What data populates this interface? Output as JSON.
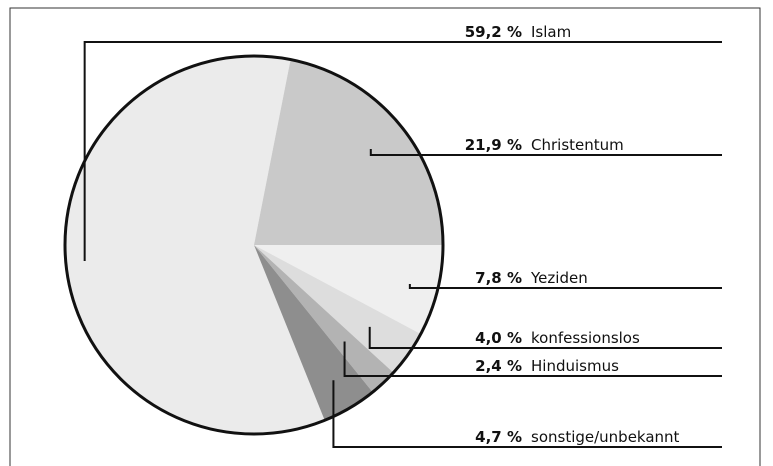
{
  "chart_data": {
    "type": "pie",
    "categories": [
      "Islam",
      "Christentum",
      "Yeziden",
      "konfessionslos",
      "Hinduismus",
      "sonstige/unbekannt"
    ],
    "values": [
      59.2,
      21.9,
      7.8,
      4.0,
      2.4,
      4.7
    ],
    "value_labels": [
      "59,2 %",
      "21,9 %",
      "7,8 %",
      "4,0 %",
      "2,4 %",
      "4,7 %"
    ],
    "colors": [
      "#ebebeb",
      "#c9c9c9",
      "#efefef",
      "#dddddd",
      "#b3b3b3",
      "#8e8e8e"
    ]
  }
}
